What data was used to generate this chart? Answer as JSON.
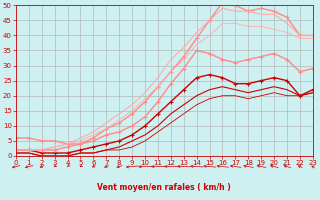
{
  "xlabel": "Vent moyen/en rafales ( km/h )",
  "xlim": [
    0,
    23
  ],
  "ylim": [
    0,
    50
  ],
  "xticks": [
    0,
    1,
    2,
    3,
    4,
    5,
    6,
    7,
    8,
    9,
    10,
    11,
    12,
    13,
    14,
    15,
    16,
    17,
    18,
    19,
    20,
    21,
    22,
    23
  ],
  "yticks": [
    0,
    5,
    10,
    15,
    20,
    25,
    30,
    35,
    40,
    45,
    50
  ],
  "bg_color": "#cff0f0",
  "grid_color": "#aaaaaa",
  "series": [
    {
      "x": [
        0,
        1,
        2,
        3,
        4,
        5,
        6,
        7,
        8,
        9,
        10,
        11,
        12,
        13,
        14,
        15,
        16,
        17,
        18,
        19,
        20,
        21,
        22,
        23
      ],
      "y": [
        2,
        2,
        1,
        1,
        1,
        2,
        3,
        4,
        5,
        7,
        10,
        14,
        18,
        22,
        26,
        27,
        26,
        24,
        24,
        25,
        26,
        25,
        20,
        22
      ],
      "color": "#cc0000",
      "marker": "+",
      "markersize": 3,
      "linewidth": 1.0,
      "linestyle": "-"
    },
    {
      "x": [
        0,
        1,
        2,
        3,
        4,
        5,
        6,
        7,
        8,
        9,
        10,
        11,
        12,
        13,
        14,
        15,
        16,
        17,
        18,
        19,
        20,
        21,
        22,
        23
      ],
      "y": [
        1,
        1,
        0,
        0,
        0,
        1,
        1,
        2,
        3,
        5,
        7,
        10,
        14,
        17,
        20,
        22,
        23,
        22,
        21,
        22,
        23,
        22,
        20,
        21
      ],
      "color": "#cc0000",
      "marker": null,
      "markersize": 0,
      "linewidth": 0.8,
      "linestyle": "-"
    },
    {
      "x": [
        0,
        1,
        2,
        3,
        4,
        5,
        6,
        7,
        8,
        9,
        10,
        11,
        12,
        13,
        14,
        15,
        16,
        17,
        18,
        19,
        20,
        21,
        22,
        23
      ],
      "y": [
        1,
        1,
        0,
        0,
        0,
        1,
        1,
        2,
        2,
        3,
        5,
        8,
        11,
        14,
        17,
        19,
        20,
        20,
        19,
        20,
        21,
        20,
        20,
        21
      ],
      "color": "#cc0000",
      "marker": null,
      "markersize": 0,
      "linewidth": 0.6,
      "linestyle": "-"
    },
    {
      "x": [
        0,
        1,
        2,
        3,
        4,
        5,
        6,
        7,
        8,
        9,
        10,
        11,
        12,
        13,
        14,
        15,
        16,
        17,
        18,
        19,
        20,
        21,
        22,
        23
      ],
      "y": [
        6,
        6,
        5,
        5,
        4,
        4,
        5,
        7,
        8,
        10,
        13,
        18,
        24,
        29,
        35,
        34,
        32,
        31,
        32,
        33,
        34,
        32,
        28,
        29
      ],
      "color": "#ff8888",
      "marker": "+",
      "markersize": 3,
      "linewidth": 1.0,
      "linestyle": "-"
    },
    {
      "x": [
        0,
        1,
        2,
        3,
        4,
        5,
        6,
        7,
        8,
        9,
        10,
        11,
        12,
        13,
        14,
        15,
        16,
        17,
        18,
        19,
        20,
        21,
        22,
        23
      ],
      "y": [
        2,
        2,
        2,
        2,
        3,
        4,
        6,
        9,
        11,
        14,
        18,
        23,
        28,
        33,
        39,
        45,
        51,
        50,
        48,
        49,
        48,
        46,
        40,
        40
      ],
      "color": "#ff8888",
      "marker": "+",
      "markersize": 3,
      "linewidth": 1.0,
      "linestyle": "-"
    },
    {
      "x": [
        0,
        1,
        2,
        3,
        4,
        5,
        6,
        7,
        8,
        9,
        10,
        11,
        12,
        13,
        14,
        15,
        16,
        17,
        18,
        19,
        20,
        21,
        22,
        23
      ],
      "y": [
        2,
        2,
        2,
        3,
        4,
        6,
        8,
        11,
        14,
        17,
        21,
        26,
        32,
        36,
        41,
        45,
        49,
        48,
        48,
        47,
        47,
        44,
        40,
        40
      ],
      "color": "#ffaaaa",
      "marker": null,
      "markersize": 0,
      "linewidth": 0.8,
      "linestyle": "-"
    },
    {
      "x": [
        0,
        1,
        2,
        3,
        4,
        5,
        6,
        7,
        8,
        9,
        10,
        11,
        12,
        13,
        14,
        15,
        16,
        17,
        18,
        19,
        20,
        21,
        22,
        23
      ],
      "y": [
        2,
        2,
        2,
        3,
        4,
        5,
        7,
        9,
        12,
        15,
        19,
        23,
        28,
        32,
        37,
        40,
        44,
        44,
        43,
        43,
        42,
        41,
        39,
        39
      ],
      "color": "#ffaaaa",
      "marker": null,
      "markersize": 0,
      "linewidth": 0.6,
      "linestyle": "-"
    }
  ],
  "wind_angles": [
    225,
    225,
    210,
    200,
    195,
    200,
    205,
    210,
    215,
    250,
    260,
    270,
    275,
    280,
    285,
    290,
    295,
    300,
    305,
    310,
    315,
    320,
    330,
    335
  ]
}
